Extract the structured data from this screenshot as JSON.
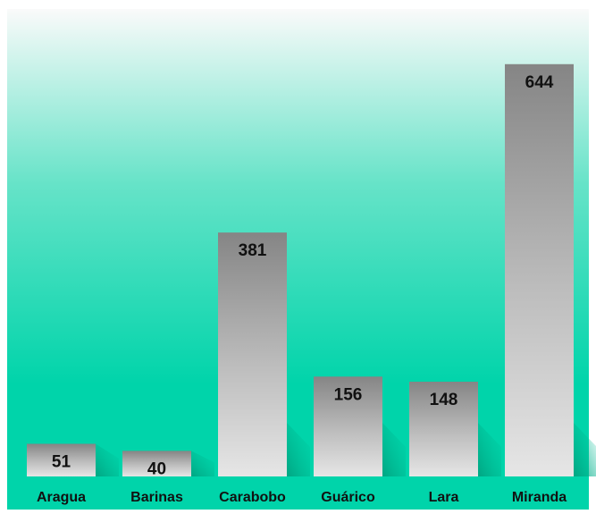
{
  "chart_data": {
    "type": "bar",
    "title": "",
    "xlabel": "",
    "ylabel": "",
    "categories": [
      "Aragua",
      "Barinas",
      "Carabobo",
      "Guárico",
      "Lara",
      "Miranda"
    ],
    "values": [
      51,
      40,
      381,
      156,
      148,
      644
    ],
    "data_labels": [
      "51",
      "40",
      "381",
      "156",
      "148",
      "644"
    ],
    "ylim": [
      0,
      680
    ],
    "grid": false,
    "legend": "none",
    "colors": {
      "background_top": "#fafafa",
      "background_bottom": "#00d4aa",
      "bar_dark": "#858585",
      "bar_light": "#e6e6e6",
      "text": "#111111"
    }
  }
}
